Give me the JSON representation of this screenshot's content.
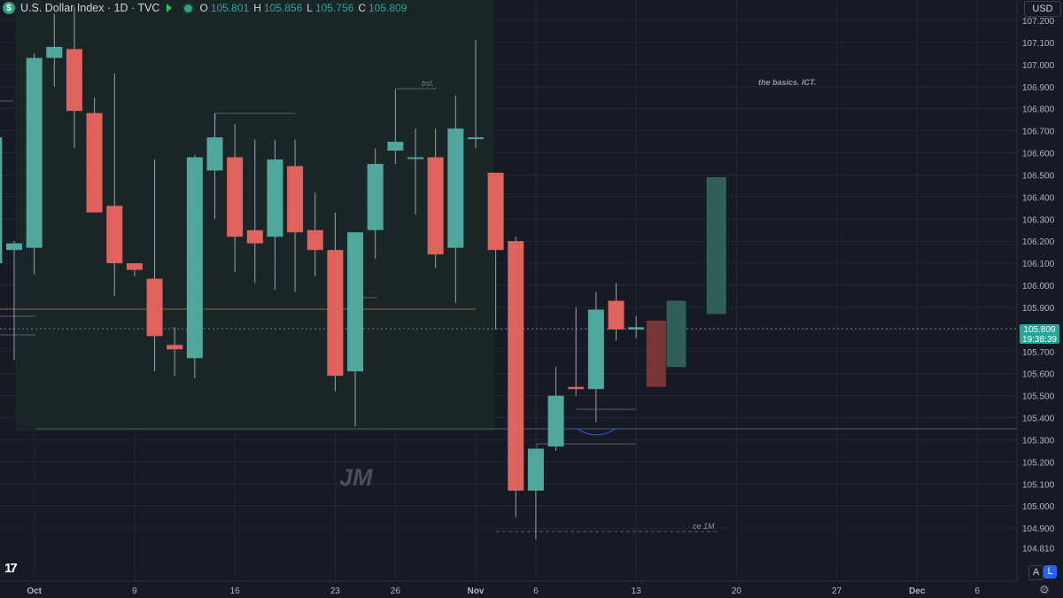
{
  "legend": {
    "symbol_icon": "dollar-circle-icon",
    "title": "U.S. Dollar Index · 1D · TVC",
    "open_label": "O",
    "open": "105.801",
    "high_label": "H",
    "high": "105.856",
    "low_label": "L",
    "low": "105.756",
    "close_label": "C",
    "close": "105.809"
  },
  "currency": "USD",
  "price_label": {
    "price": "105.809",
    "countdown": "19:38:39"
  },
  "buttons": {
    "auto": "A",
    "log": "L"
  },
  "logo_text": "17",
  "colors": {
    "bg": "#161a25",
    "up": "#4fa89b",
    "down": "#e0625c",
    "accent": "#2962ff",
    "up_ghost": "#2f5f58",
    "down_ghost": "#7a3538"
  },
  "annotations": {
    "bsl": "bsl.",
    "basics": "the basics. ICT.",
    "ce": "ce 1M",
    "watermark": "JM"
  },
  "chart_data": {
    "type": "candlestick",
    "title": "U.S. Dollar Index · 1D · TVC",
    "ylim": [
      104.75,
      107.25
    ],
    "y_ticks": [
      "107.200",
      "107.100",
      "107.000",
      "106.900",
      "106.800",
      "106.700",
      "106.600",
      "106.500",
      "106.400",
      "106.300",
      "106.200",
      "106.100",
      "106.000",
      "105.900",
      "105.800",
      "105.700",
      "105.600",
      "105.500",
      "105.400",
      "105.300",
      "105.200",
      "105.100",
      "105.000",
      "104.900",
      "104.810"
    ],
    "x_labels": [
      {
        "label": "Oct",
        "i": 1
      },
      {
        "label": "9",
        "i": 6
      },
      {
        "label": "16",
        "i": 11
      },
      {
        "label": "23",
        "i": 16
      },
      {
        "label": "26",
        "i": 19
      },
      {
        "label": "Nov",
        "i": 23
      },
      {
        "label": "6",
        "i": 26
      },
      {
        "label": "13",
        "i": 31
      },
      {
        "label": "20",
        "i": 36
      },
      {
        "label": "27",
        "i": 41
      },
      {
        "label": "Dec",
        "i": 45
      },
      {
        "label": "6",
        "i": 48
      }
    ],
    "candles": [
      {
        "i": -1,
        "o": 106.1,
        "h": 106.73,
        "l": 105.66,
        "c": 106.67
      },
      {
        "i": 0,
        "o": 106.16,
        "h": 106.2,
        "l": 105.66,
        "c": 106.19
      },
      {
        "i": 1,
        "o": 106.17,
        "h": 107.05,
        "l": 106.05,
        "c": 107.03
      },
      {
        "i": 2,
        "o": 107.03,
        "h": 107.23,
        "l": 106.9,
        "c": 107.08
      },
      {
        "i": 3,
        "o": 107.07,
        "h": 107.26,
        "l": 106.62,
        "c": 106.79
      },
      {
        "i": 4,
        "o": 106.78,
        "h": 106.85,
        "l": 106.35,
        "c": 106.33
      },
      {
        "i": 5,
        "o": 106.36,
        "h": 106.96,
        "l": 105.95,
        "c": 106.1
      },
      {
        "i": 6,
        "o": 106.1,
        "h": 106.1,
        "l": 106.04,
        "c": 106.07
      },
      {
        "i": 7,
        "o": 106.03,
        "h": 106.57,
        "l": 105.61,
        "c": 105.77
      },
      {
        "i": 8,
        "o": 105.73,
        "h": 105.81,
        "l": 105.59,
        "c": 105.71
      },
      {
        "i": 9,
        "o": 105.67,
        "h": 106.59,
        "l": 105.58,
        "c": 106.58
      },
      {
        "i": 10,
        "o": 106.52,
        "h": 106.78,
        "l": 106.3,
        "c": 106.67
      },
      {
        "i": 11,
        "o": 106.58,
        "h": 106.73,
        "l": 106.06,
        "c": 106.22
      },
      {
        "i": 12,
        "o": 106.25,
        "h": 106.66,
        "l": 106.01,
        "c": 106.19
      },
      {
        "i": 13,
        "o": 106.22,
        "h": 106.66,
        "l": 105.98,
        "c": 106.57
      },
      {
        "i": 14,
        "o": 106.54,
        "h": 106.66,
        "l": 105.97,
        "c": 106.24
      },
      {
        "i": 15,
        "o": 106.25,
        "h": 106.42,
        "l": 106.04,
        "c": 106.16
      },
      {
        "i": 16,
        "o": 106.16,
        "h": 106.33,
        "l": 105.52,
        "c": 105.59
      },
      {
        "i": 17,
        "o": 105.61,
        "h": 106.22,
        "l": 105.36,
        "c": 106.24
      },
      {
        "i": 18,
        "o": 106.25,
        "h": 106.62,
        "l": 106.12,
        "c": 106.55
      },
      {
        "i": 19,
        "o": 106.61,
        "h": 106.89,
        "l": 106.55,
        "c": 106.65
      },
      {
        "i": 20,
        "o": 106.58,
        "h": 106.71,
        "l": 106.32,
        "c": 106.58
      },
      {
        "i": 21,
        "o": 106.58,
        "h": 106.71,
        "l": 106.08,
        "c": 106.14
      },
      {
        "i": 22,
        "o": 106.17,
        "h": 106.86,
        "l": 105.92,
        "c": 106.71
      },
      {
        "i": 23,
        "o": 106.67,
        "h": 107.11,
        "l": 106.62,
        "c": 106.67
      },
      {
        "i": 24,
        "o": 106.51,
        "h": 106.51,
        "l": 105.8,
        "c": 106.16
      },
      {
        "i": 25,
        "o": 106.2,
        "h": 106.22,
        "l": 104.95,
        "c": 105.07
      },
      {
        "i": 26,
        "o": 105.07,
        "h": 105.26,
        "l": 104.85,
        "c": 105.26
      },
      {
        "i": 27,
        "o": 105.27,
        "h": 105.63,
        "l": 105.25,
        "c": 105.5
      },
      {
        "i": 28,
        "o": 105.54,
        "h": 105.9,
        "l": 105.5,
        "c": 105.53
      },
      {
        "i": 29,
        "o": 105.53,
        "h": 105.97,
        "l": 105.38,
        "c": 105.89
      },
      {
        "i": 30,
        "o": 105.93,
        "h": 106.01,
        "l": 105.75,
        "c": 105.8
      },
      {
        "i": 31,
        "o": 105.8,
        "h": 105.86,
        "l": 105.76,
        "c": 105.81
      }
    ],
    "projected": [
      {
        "i": 32,
        "o": 105.84,
        "c": 105.54
      },
      {
        "i": 33,
        "o": 105.63,
        "c": 105.93
      },
      {
        "i": 35,
        "o": 105.87,
        "c": 106.49
      }
    ]
  }
}
